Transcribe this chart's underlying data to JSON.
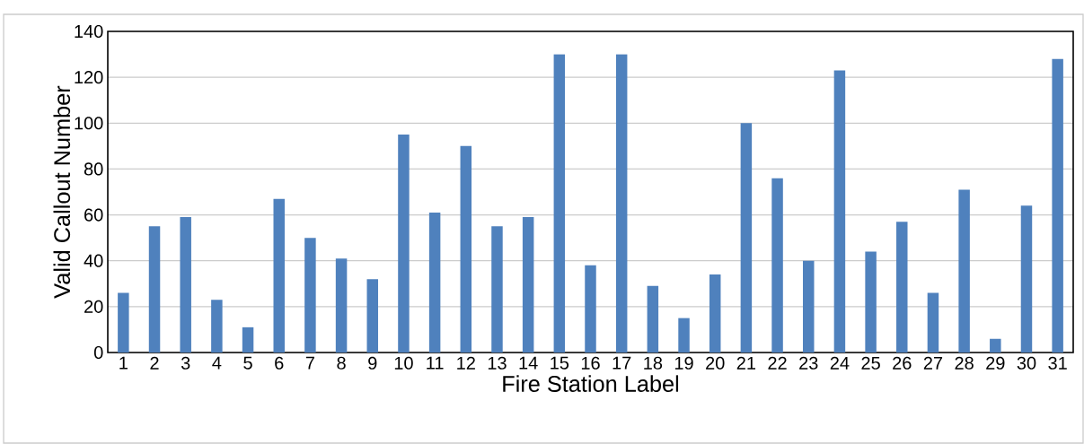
{
  "chart_data": {
    "type": "bar",
    "xlabel": "Fire Station Label",
    "ylabel": "Valid Callout Number",
    "categories": [
      "1",
      "2",
      "3",
      "4",
      "5",
      "6",
      "7",
      "8",
      "9",
      "10",
      "11",
      "12",
      "13",
      "14",
      "15",
      "16",
      "17",
      "18",
      "19",
      "20",
      "21",
      "22",
      "23",
      "24",
      "25",
      "26",
      "27",
      "28",
      "29",
      "30",
      "31"
    ],
    "values": [
      26,
      55,
      59,
      23,
      11,
      67,
      50,
      41,
      32,
      95,
      61,
      90,
      55,
      59,
      130,
      38,
      130,
      29,
      15,
      34,
      100,
      76,
      40,
      123,
      44,
      57,
      26,
      71,
      6,
      64,
      128
    ],
    "color": "#4f81bd",
    "ylim": [
      0,
      140
    ],
    "yticks": [
      0,
      20,
      40,
      60,
      80,
      100,
      120,
      140
    ],
    "grid": "y"
  }
}
